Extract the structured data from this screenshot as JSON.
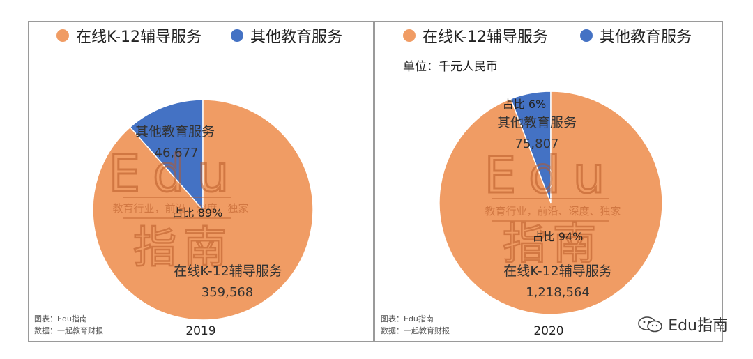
{
  "colors": {
    "online": "#F09C64",
    "other": "#4472C4",
    "watermark": "#B85A28"
  },
  "legend": {
    "online": "在线K-12辅导服务",
    "other": "其他教育服务"
  },
  "panels": [
    {
      "unit": "",
      "year": "2019",
      "source_chart": "图表：Edu指南",
      "source_data": "数据：一起教育财报"
    },
    {
      "unit": "单位：千元人民币",
      "year": "2020",
      "source_chart": "图表：Edu指南",
      "source_data": "数据：一起教育财报"
    }
  ],
  "watermark": {
    "logo": "Edu",
    "slogan": "教育行业，前沿、深度、独家",
    "name": "指南"
  },
  "brand": {
    "text": "Edu指南",
    "icon": "wechat-icon"
  },
  "chart_data": [
    {
      "type": "pie",
      "title": "2019",
      "slices": [
        {
          "name": "在线K-12辅导服务",
          "value": 359568,
          "value_label": "359,568",
          "pct_label": "占比 89%"
        },
        {
          "name": "其他教育服务",
          "value": 46677,
          "value_label": "46,677",
          "pct_label": ""
        }
      ]
    },
    {
      "type": "pie",
      "title": "2020",
      "slices": [
        {
          "name": "在线K-12辅导服务",
          "value": 1218564,
          "value_label": "1,218,564",
          "pct_label": "占比 94%"
        },
        {
          "name": "其他教育服务",
          "value": 75807,
          "value_label": "75,807",
          "pct_label": "占比 6%"
        }
      ]
    }
  ]
}
